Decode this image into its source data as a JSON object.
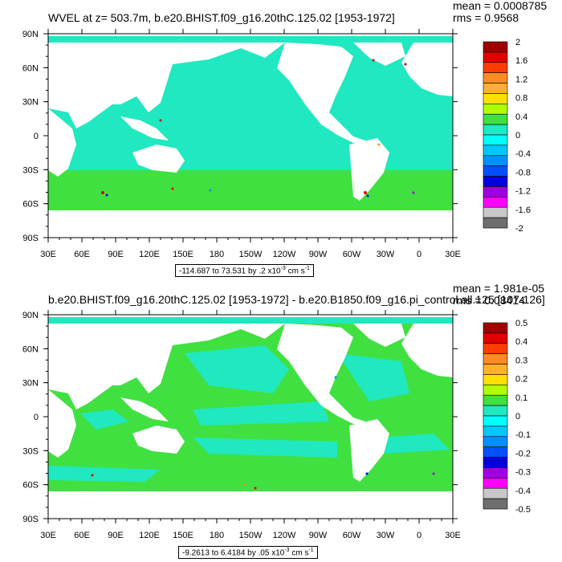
{
  "chart_data": [
    {
      "type": "heatmap",
      "title": "WVEL at z= 503.7m, b.e20.BHIST.f09_g16.20thC.125.02 [1953-1972]",
      "mean_label": "mean = 0.0008785",
      "rms_label": "rms = 0.9568",
      "x_ticks": [
        "30E",
        "60E",
        "90E",
        "120E",
        "150E",
        "180",
        "150W",
        "120W",
        "90W",
        "60W",
        "30W",
        "0",
        "30E"
      ],
      "y_ticks": [
        "90N",
        "60N",
        "30N",
        "0",
        "30S",
        "60S",
        "90S"
      ],
      "xlim": [
        30,
        390
      ],
      "ylim": [
        -90,
        90
      ],
      "contour_info": "-114.687 to 73.531 by .2 x10",
      "contour_info_exp": "-3",
      "contour_info_units": " cm s",
      "contour_info_units_exp": "-1",
      "colorbar_labels": [
        "2",
        "1.6",
        "1.2",
        "0.8",
        "0.4",
        "0",
        "-0.4",
        "-0.8",
        "-1.2",
        "-1.6",
        "-2"
      ],
      "colorbar_colors": [
        "#a00000",
        "#e00000",
        "#ff3c00",
        "#ff8c20",
        "#ffb030",
        "#ffe000",
        "#b0ff00",
        "#40e040",
        "#20e8c0",
        "#00ffff",
        "#00c8ff",
        "#0090ff",
        "#0050ff",
        "#0000e0",
        "#a000e0",
        "#ff00ff",
        "#c8c8c8",
        "#6e6e6e"
      ],
      "map_ocean_color": "#20e8c0",
      "map_secondary_color": "#40e040"
    },
    {
      "type": "heatmap",
      "title": "b.e20.BHIST.f09_g16.20thC.125.02 [1953-1972] - b.e20.B1850.f09_g16.pi_control.all.125 [107-126]",
      "mean_label": "mean = 1.981e-05",
      "rms_label": "rms = 0.08414",
      "x_ticks": [
        "30E",
        "60E",
        "90E",
        "120E",
        "150E",
        "180",
        "150W",
        "120W",
        "90W",
        "60W",
        "30W",
        "0",
        "30E"
      ],
      "y_ticks": [
        "90N",
        "60N",
        "30N",
        "0",
        "30S",
        "60S",
        "90S"
      ],
      "xlim": [
        30,
        390
      ],
      "ylim": [
        -90,
        90
      ],
      "contour_info": "-9.2613 to 6.4184 by .05 x10",
      "contour_info_exp": "-3",
      "contour_info_units": " cm s",
      "contour_info_units_exp": "-1",
      "colorbar_labels": [
        "0.5",
        "0.4",
        "0.3",
        "0.2",
        "0.1",
        "0",
        "-0.1",
        "-0.2",
        "-0.3",
        "-0.4",
        "-0.5"
      ],
      "colorbar_colors": [
        "#a00000",
        "#e00000",
        "#ff3c00",
        "#ff8c20",
        "#ffb030",
        "#ffe000",
        "#b0ff00",
        "#40e040",
        "#20e8c0",
        "#00ffff",
        "#00c8ff",
        "#0090ff",
        "#0050ff",
        "#0000e0",
        "#a000e0",
        "#ff00ff",
        "#c8c8c8",
        "#6e6e6e"
      ],
      "map_ocean_color": "#40e040",
      "map_secondary_color": "#20e8c0"
    }
  ]
}
